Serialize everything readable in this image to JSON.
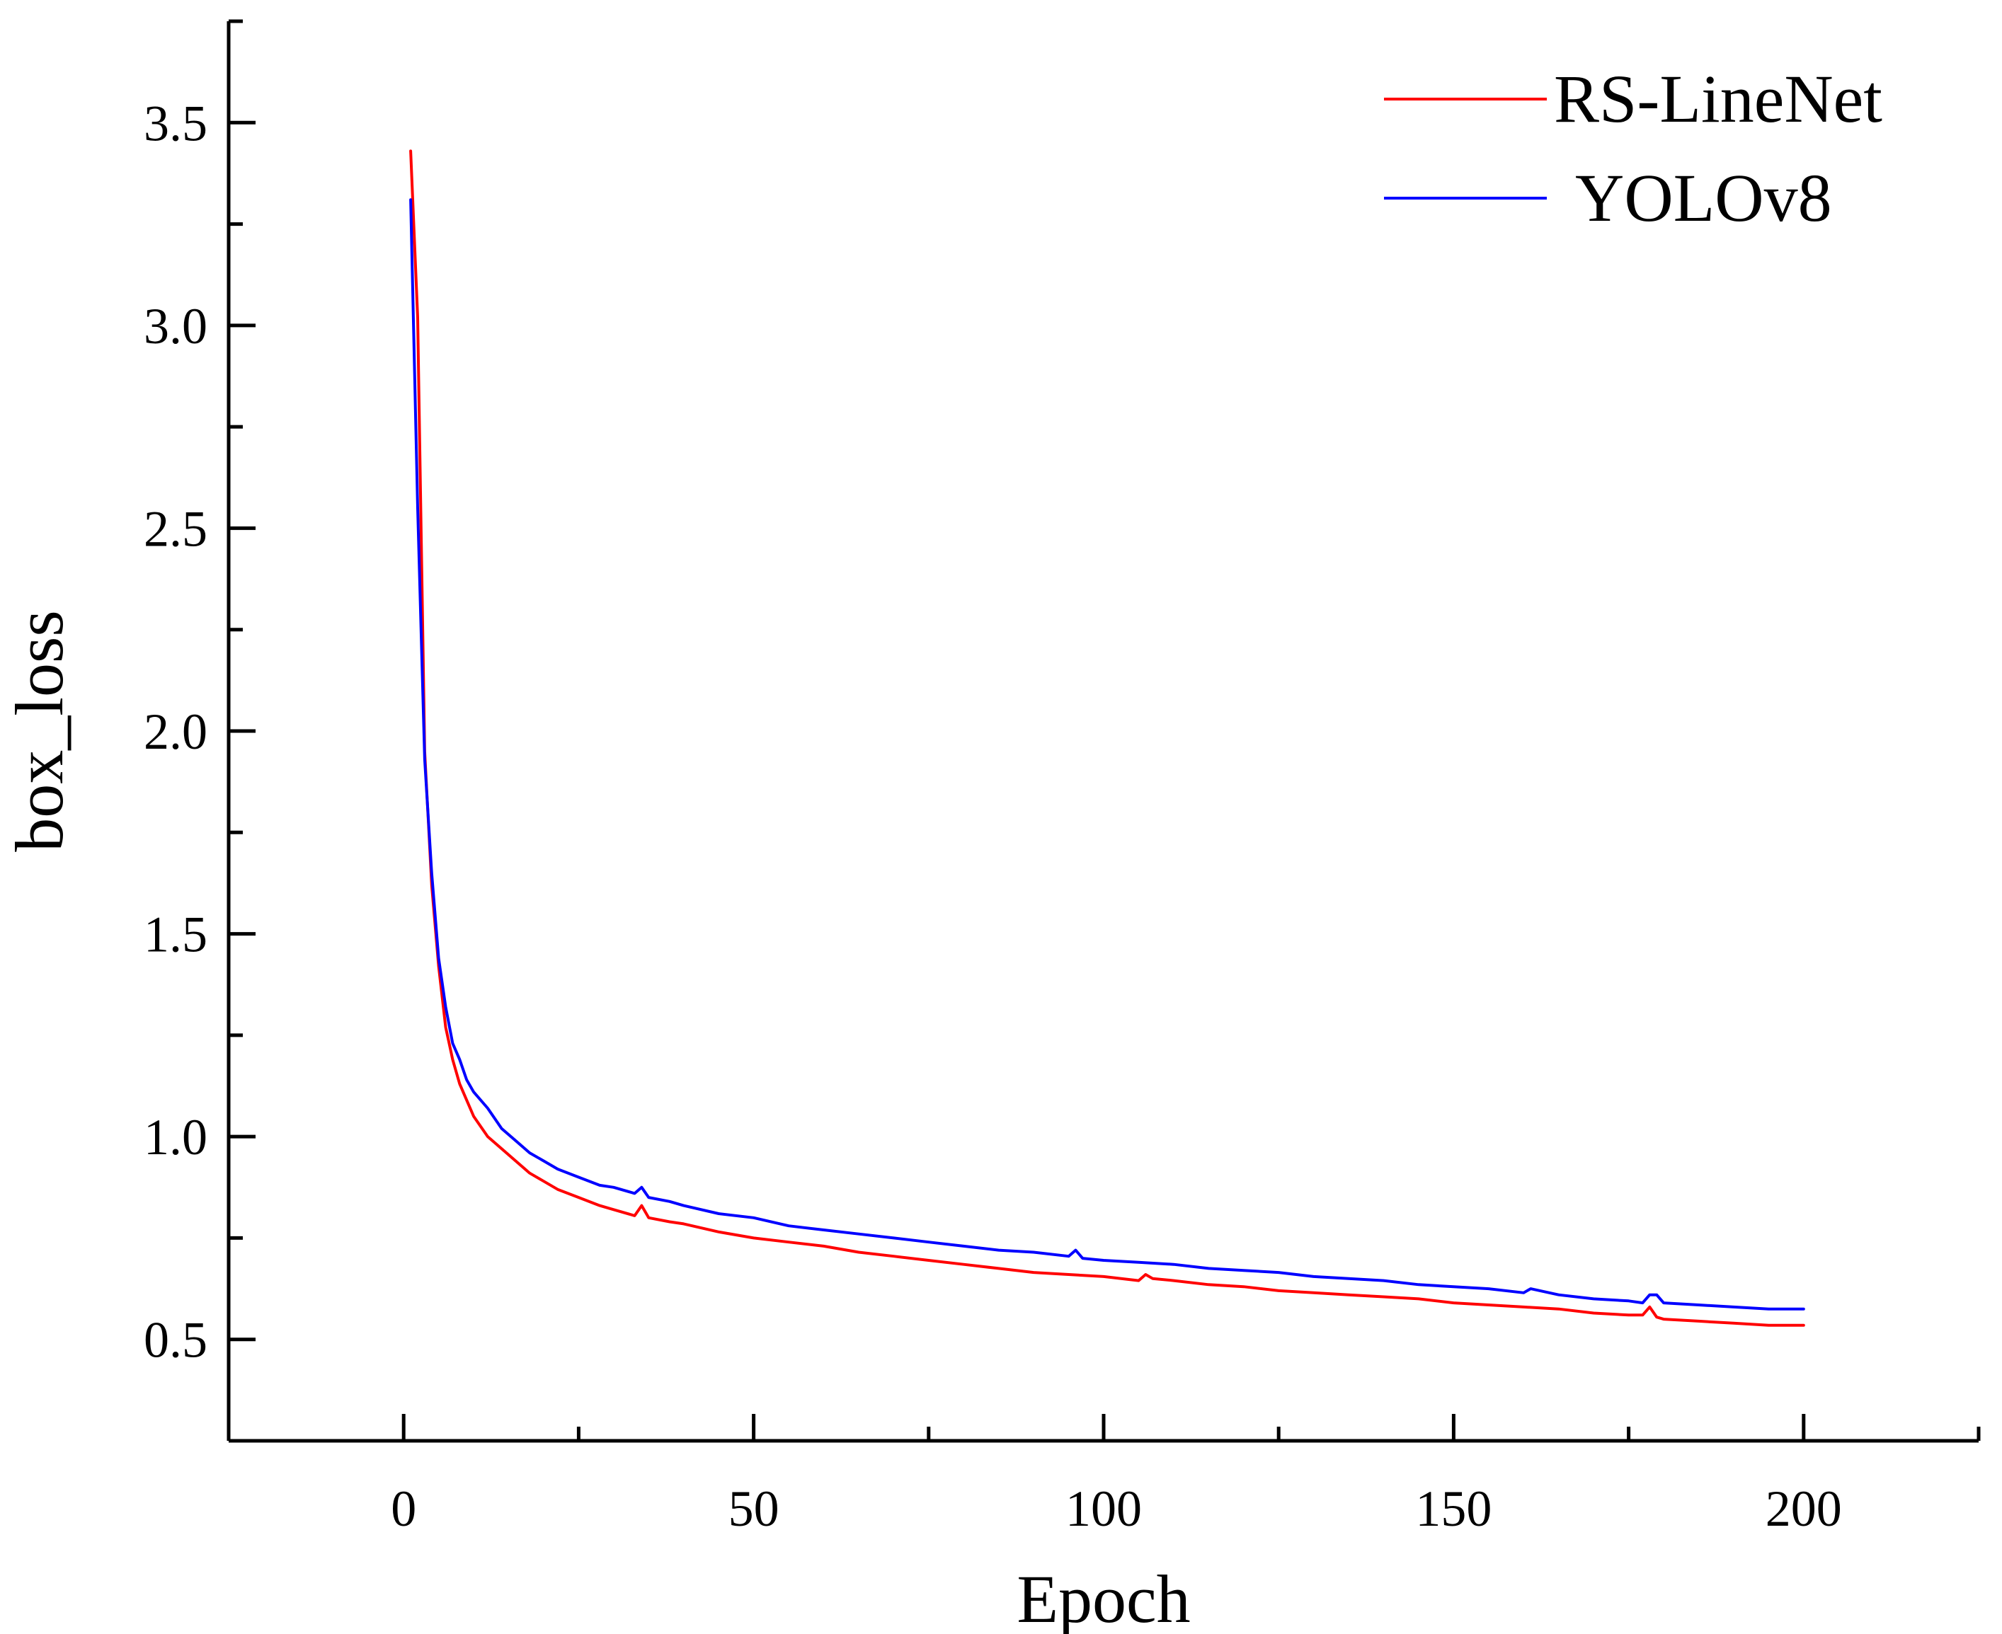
{
  "chart_data": {
    "type": "line",
    "title": "",
    "xlabel": "Epoch",
    "ylabel": "box_loss",
    "xlim": [
      -25,
      225
    ],
    "ylim": [
      0.25,
      3.75
    ],
    "xticks": [
      0,
      50,
      100,
      150,
      200
    ],
    "xtick_labels": [
      "0",
      "50",
      "100",
      "150",
      "200"
    ],
    "yticks": [
      0.5,
      1.0,
      1.5,
      2.0,
      2.5,
      3.0,
      3.5
    ],
    "ytick_labels": [
      "0.5",
      "1.0",
      "1.5",
      "2.0",
      "2.5",
      "3.0",
      "3.5"
    ],
    "grid": false,
    "legend_position": "top-right",
    "series": [
      {
        "name": "RS-LineNet",
        "color": "#ff0000",
        "x": [
          1,
          2,
          3,
          4,
          5,
          6,
          7,
          8,
          9,
          10,
          12,
          14,
          16,
          18,
          20,
          22,
          25,
          28,
          30,
          33,
          34,
          35,
          38,
          40,
          45,
          50,
          55,
          60,
          65,
          70,
          75,
          80,
          85,
          90,
          95,
          100,
          105,
          106,
          107,
          110,
          115,
          120,
          125,
          130,
          135,
          140,
          145,
          150,
          155,
          160,
          165,
          170,
          175,
          177,
          178,
          179,
          180,
          185,
          190,
          195,
          200
        ],
        "y": [
          3.43,
          3.02,
          1.95,
          1.62,
          1.42,
          1.27,
          1.19,
          1.13,
          1.09,
          1.05,
          1.0,
          0.97,
          0.94,
          0.91,
          0.89,
          0.87,
          0.85,
          0.83,
          0.82,
          0.805,
          0.83,
          0.8,
          0.79,
          0.785,
          0.765,
          0.75,
          0.74,
          0.73,
          0.715,
          0.705,
          0.695,
          0.685,
          0.675,
          0.665,
          0.66,
          0.655,
          0.645,
          0.66,
          0.65,
          0.645,
          0.635,
          0.63,
          0.62,
          0.615,
          0.61,
          0.605,
          0.6,
          0.59,
          0.585,
          0.58,
          0.575,
          0.565,
          0.56,
          0.56,
          0.58,
          0.555,
          0.55,
          0.545,
          0.54,
          0.535,
          0.535
        ]
      },
      {
        "name": "YOLOv8",
        "color": "#0000ff",
        "x": [
          1,
          2,
          3,
          4,
          5,
          6,
          7,
          8,
          9,
          10,
          12,
          14,
          16,
          18,
          20,
          22,
          25,
          28,
          30,
          33,
          34,
          35,
          38,
          40,
          45,
          50,
          55,
          60,
          65,
          70,
          75,
          80,
          85,
          90,
          95,
          96,
          97,
          100,
          105,
          110,
          115,
          120,
          125,
          130,
          135,
          140,
          145,
          150,
          155,
          160,
          161,
          165,
          170,
          175,
          177,
          178,
          179,
          180,
          185,
          190,
          195,
          198,
          200
        ],
        "y": [
          3.31,
          2.55,
          1.93,
          1.65,
          1.44,
          1.32,
          1.23,
          1.19,
          1.14,
          1.11,
          1.07,
          1.02,
          0.99,
          0.96,
          0.94,
          0.92,
          0.9,
          0.88,
          0.875,
          0.86,
          0.875,
          0.85,
          0.84,
          0.83,
          0.81,
          0.8,
          0.78,
          0.77,
          0.76,
          0.75,
          0.74,
          0.73,
          0.72,
          0.715,
          0.705,
          0.72,
          0.7,
          0.695,
          0.69,
          0.685,
          0.675,
          0.67,
          0.665,
          0.655,
          0.65,
          0.645,
          0.635,
          0.63,
          0.625,
          0.615,
          0.625,
          0.61,
          0.6,
          0.595,
          0.59,
          0.61,
          0.61,
          0.59,
          0.585,
          0.58,
          0.575,
          0.575,
          0.575
        ]
      }
    ]
  }
}
